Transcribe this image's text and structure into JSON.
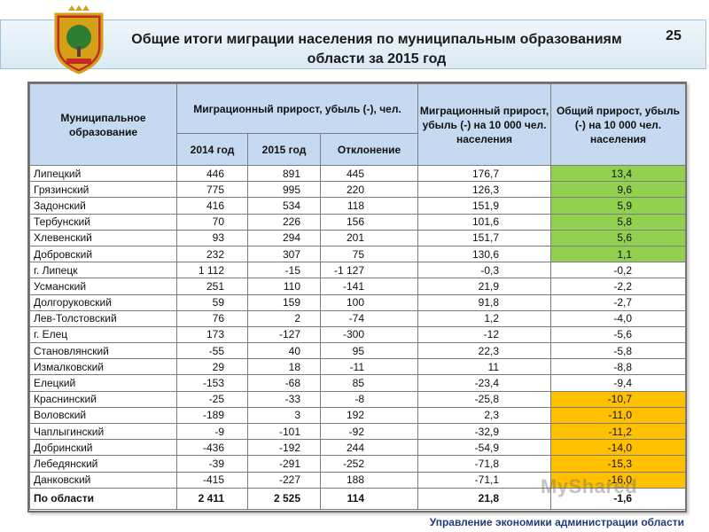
{
  "slide": {
    "title": "Общие итоги миграции населения по муниципальным образованиям области за 2015 год",
    "number": "25",
    "footer": "Управление экономики администрации области",
    "watermark": "MyShared"
  },
  "table": {
    "headers": {
      "municipality": "Муниципальное образование",
      "migration": "Миграционный прирост, убыль (-), чел.",
      "year2014": "2014 год",
      "year2015": "2015 год",
      "deviation": "Отклонение",
      "per10000": "Миграционный прирост, убыль (-) на 10 000 чел. населения",
      "total": "Общий прирост, убыль (-) на 10 000 чел. населения"
    },
    "rows": [
      {
        "name": "Липецкий",
        "y2014": "446",
        "y2015": "891",
        "dev": "445",
        "mig": "176,7",
        "total": "13,4",
        "hl": "green"
      },
      {
        "name": "Грязинский",
        "y2014": "775",
        "y2015": "995",
        "dev": "220",
        "mig": "126,3",
        "total": "9,6",
        "hl": "green"
      },
      {
        "name": "Задонский",
        "y2014": "416",
        "y2015": "534",
        "dev": "118",
        "mig": "151,9",
        "total": "5,9",
        "hl": "green"
      },
      {
        "name": "Тербунский",
        "y2014": "70",
        "y2015": "226",
        "dev": "156",
        "mig": "101,6",
        "total": "5,8",
        "hl": "green"
      },
      {
        "name": "Хлевенский",
        "y2014": "93",
        "y2015": "294",
        "dev": "201",
        "mig": "151,7",
        "total": "5,6",
        "hl": "green"
      },
      {
        "name": "Добровский",
        "y2014": "232",
        "y2015": "307",
        "dev": "75",
        "mig": "130,6",
        "total": "1,1",
        "hl": "green"
      },
      {
        "name": "г. Липецк",
        "y2014": "1 112",
        "y2015": "-15",
        "dev": "-1 127",
        "mig": "-0,3",
        "total": "-0,2",
        "hl": ""
      },
      {
        "name": "Усманский",
        "y2014": "251",
        "y2015": "110",
        "dev": "-141",
        "mig": "21,9",
        "total": "-2,2",
        "hl": ""
      },
      {
        "name": "Долгоруковский",
        "y2014": "59",
        "y2015": "159",
        "dev": "100",
        "mig": "91,8",
        "total": "-2,7",
        "hl": ""
      },
      {
        "name": "Лев-Толстовский",
        "y2014": "76",
        "y2015": "2",
        "dev": "-74",
        "mig": "1,2",
        "total": "-4,0",
        "hl": ""
      },
      {
        "name": "г. Елец",
        "y2014": "173",
        "y2015": "-127",
        "dev": "-300",
        "mig": "-12",
        "total": "-5,6",
        "hl": ""
      },
      {
        "name": "Становлянский",
        "y2014": "-55",
        "y2015": "40",
        "dev": "95",
        "mig": "22,3",
        "total": "-5,8",
        "hl": ""
      },
      {
        "name": "Измалковский",
        "y2014": "29",
        "y2015": "18",
        "dev": "-11",
        "mig": "11",
        "total": "-8,8",
        "hl": ""
      },
      {
        "name": "Елецкий",
        "y2014": "-153",
        "y2015": "-68",
        "dev": "85",
        "mig": "-23,4",
        "total": "-9,4",
        "hl": ""
      },
      {
        "name": "Краснинский",
        "y2014": "-25",
        "y2015": "-33",
        "dev": "-8",
        "mig": "-25,8",
        "total": "-10,7",
        "hl": "orange"
      },
      {
        "name": "Воловский",
        "y2014": "-189",
        "y2015": "3",
        "dev": "192",
        "mig": "2,3",
        "total": "-11,0",
        "hl": "orange"
      },
      {
        "name": "Чаплыгинский",
        "y2014": "-9",
        "y2015": "-101",
        "dev": "-92",
        "mig": "-32,9",
        "total": "-11,2",
        "hl": "orange"
      },
      {
        "name": "Добринский",
        "y2014": "-436",
        "y2015": "-192",
        "dev": "244",
        "mig": "-54,9",
        "total": "-14,0",
        "hl": "orange"
      },
      {
        "name": "Лебедянский",
        "y2014": "-39",
        "y2015": "-291",
        "dev": "-252",
        "mig": "-71,8",
        "total": "-15,3",
        "hl": "orange"
      },
      {
        "name": "Данковский",
        "y2014": "-415",
        "y2015": "-227",
        "dev": "188",
        "mig": "-71,1",
        "total": "-16,0",
        "hl": "orange"
      }
    ],
    "total_row": {
      "name": "По области",
      "y2014": "2 411",
      "y2015": "2 525",
      "dev": "114",
      "mig": "21,8",
      "total": "-1,6"
    }
  },
  "colors": {
    "header_bg": "#c5d9f1",
    "positive_highlight": "#92d050",
    "negative_highlight": "#ffc000"
  }
}
